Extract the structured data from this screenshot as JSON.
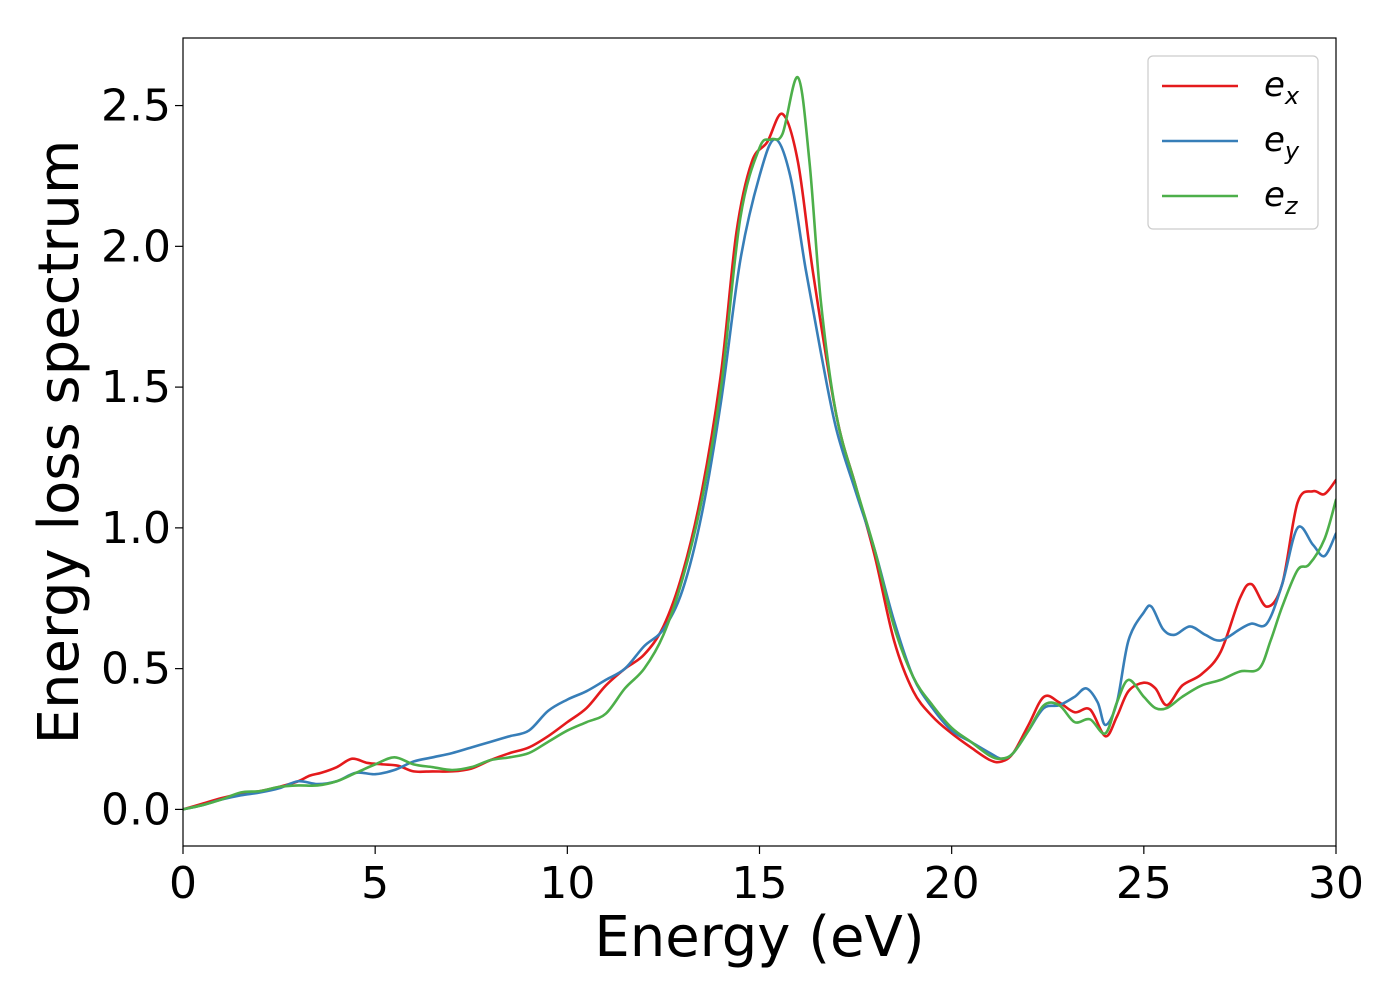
{
  "chart_data": {
    "type": "line",
    "xlabel": "Energy (eV)",
    "ylabel": "Energy loss spectrum",
    "xlim": [
      0,
      30
    ],
    "ylim": [
      -0.13,
      2.74
    ],
    "xticks": [
      0,
      5,
      10,
      15,
      20,
      25,
      30
    ],
    "xtick_labels": [
      "0",
      "5",
      "10",
      "15",
      "20",
      "25",
      "30"
    ],
    "yticks": [
      0.0,
      0.5,
      1.0,
      1.5,
      2.0,
      2.5
    ],
    "ytick_labels": [
      "0.0",
      "0.5",
      "1.0",
      "1.5",
      "2.0",
      "2.5"
    ],
    "grid": false,
    "legend_position": "top-right",
    "series": [
      {
        "name": "e_x",
        "legend_base": "e",
        "legend_sub": "x",
        "color": "#e41a1c",
        "x": [
          0,
          0.5,
          1,
          1.5,
          2,
          2.5,
          3,
          3.3,
          3.6,
          4,
          4.4,
          4.8,
          5.2,
          5.6,
          6,
          6.5,
          7,
          7.5,
          8,
          8.5,
          9,
          9.5,
          10,
          10.5,
          11,
          11.5,
          12,
          12.5,
          13,
          13.5,
          14,
          14.4,
          14.8,
          15.2,
          15.6,
          16,
          16.4,
          17,
          17.5,
          18,
          18.5,
          19,
          19.5,
          20,
          20.5,
          21,
          21.3,
          21.6,
          22,
          22.4,
          22.8,
          23.2,
          23.6,
          24,
          24.3,
          24.6,
          25,
          25.3,
          25.6,
          26,
          26.5,
          27,
          27.5,
          27.8,
          28.2,
          28.6,
          29,
          29.4,
          29.7,
          30
        ],
        "y": [
          0,
          0.02,
          0.04,
          0.055,
          0.065,
          0.08,
          0.1,
          0.12,
          0.13,
          0.15,
          0.18,
          0.165,
          0.16,
          0.155,
          0.135,
          0.135,
          0.135,
          0.145,
          0.175,
          0.2,
          0.22,
          0.26,
          0.31,
          0.36,
          0.44,
          0.5,
          0.55,
          0.65,
          0.84,
          1.13,
          1.55,
          2.05,
          2.3,
          2.37,
          2.47,
          2.3,
          1.9,
          1.4,
          1.15,
          0.9,
          0.6,
          0.42,
          0.33,
          0.27,
          0.22,
          0.175,
          0.17,
          0.2,
          0.3,
          0.4,
          0.38,
          0.345,
          0.355,
          0.26,
          0.33,
          0.42,
          0.45,
          0.43,
          0.37,
          0.44,
          0.48,
          0.56,
          0.75,
          0.8,
          0.72,
          0.8,
          1.09,
          1.13,
          1.12,
          1.17
        ]
      },
      {
        "name": "e_y",
        "legend_base": "e",
        "legend_sub": "y",
        "color": "#377eb8",
        "x": [
          0,
          0.5,
          1,
          1.5,
          2,
          2.5,
          3,
          3.5,
          4,
          4.5,
          5,
          5.5,
          6,
          6.5,
          7,
          7.5,
          8,
          8.5,
          9,
          9.5,
          10,
          10.5,
          11,
          11.5,
          12,
          12.5,
          13,
          13.5,
          14,
          14.5,
          15,
          15.4,
          15.8,
          16.2,
          16.6,
          17,
          17.5,
          18,
          18.5,
          19,
          19.5,
          20,
          20.5,
          21,
          21.3,
          21.6,
          22,
          22.4,
          22.8,
          23.2,
          23.5,
          23.8,
          24,
          24.3,
          24.6,
          25,
          25.2,
          25.5,
          25.8,
          26.2,
          26.6,
          27,
          27.5,
          27.8,
          28.2,
          28.6,
          29,
          29.4,
          29.7,
          30
        ],
        "y": [
          0,
          0.015,
          0.035,
          0.05,
          0.06,
          0.075,
          0.1,
          0.09,
          0.1,
          0.13,
          0.125,
          0.14,
          0.17,
          0.185,
          0.2,
          0.22,
          0.24,
          0.26,
          0.28,
          0.35,
          0.39,
          0.42,
          0.46,
          0.5,
          0.58,
          0.64,
          0.78,
          1.05,
          1.45,
          1.95,
          2.25,
          2.38,
          2.25,
          1.92,
          1.62,
          1.35,
          1.13,
          0.92,
          0.67,
          0.47,
          0.36,
          0.28,
          0.24,
          0.2,
          0.18,
          0.2,
          0.28,
          0.36,
          0.37,
          0.4,
          0.43,
          0.38,
          0.3,
          0.38,
          0.6,
          0.7,
          0.72,
          0.64,
          0.62,
          0.65,
          0.62,
          0.6,
          0.64,
          0.66,
          0.66,
          0.8,
          1.0,
          0.94,
          0.9,
          0.98
        ]
      },
      {
        "name": "e_z",
        "legend_base": "e",
        "legend_sub": "z",
        "color": "#4daf4a",
        "x": [
          0,
          0.5,
          1,
          1.5,
          2,
          2.5,
          3,
          3.5,
          4,
          4.5,
          5,
          5.5,
          6,
          6.5,
          7,
          7.5,
          8,
          8.5,
          9,
          9.5,
          10,
          10.5,
          11,
          11.5,
          12,
          12.5,
          13,
          13.5,
          14,
          14.5,
          15,
          15.3,
          15.6,
          16,
          16.3,
          16.6,
          17,
          17.5,
          18,
          18.5,
          19,
          19.5,
          20,
          20.5,
          21,
          21.3,
          21.6,
          22,
          22.4,
          22.8,
          23.2,
          23.6,
          24,
          24.3,
          24.6,
          25,
          25.3,
          25.6,
          26,
          26.5,
          27,
          27.5,
          28,
          28.3,
          28.6,
          29,
          29.3,
          29.7,
          30
        ],
        "y": [
          0,
          0.015,
          0.035,
          0.06,
          0.065,
          0.08,
          0.085,
          0.085,
          0.1,
          0.13,
          0.16,
          0.185,
          0.16,
          0.15,
          0.14,
          0.15,
          0.175,
          0.185,
          0.2,
          0.24,
          0.28,
          0.31,
          0.34,
          0.43,
          0.5,
          0.62,
          0.82,
          1.1,
          1.5,
          2.1,
          2.35,
          2.38,
          2.4,
          2.6,
          2.3,
          1.8,
          1.4,
          1.15,
          0.92,
          0.65,
          0.47,
          0.37,
          0.29,
          0.24,
          0.19,
          0.18,
          0.2,
          0.28,
          0.37,
          0.37,
          0.31,
          0.32,
          0.27,
          0.38,
          0.46,
          0.4,
          0.36,
          0.36,
          0.4,
          0.44,
          0.46,
          0.49,
          0.5,
          0.6,
          0.72,
          0.85,
          0.87,
          0.96,
          1.1
        ]
      }
    ]
  }
}
